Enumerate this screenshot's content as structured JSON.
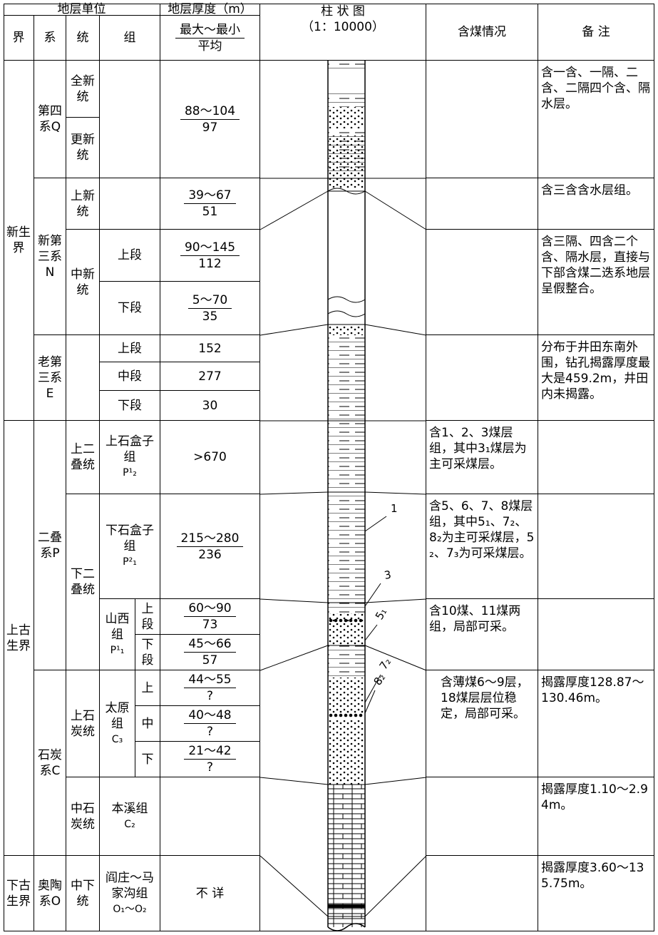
{
  "header": {
    "strata_unit": "地层单位",
    "thickness": "地层厚度（m）",
    "erathem": "界",
    "system": "系",
    "series": "统",
    "formation": "组",
    "range": "最大～最小",
    "average": "平均",
    "column": "柱 状 图",
    "scale": "（1：10000）",
    "coal": "含煤情况",
    "remarks": "备 注"
  },
  "erathems": [
    "新生界",
    "上古生界",
    "下古生界"
  ],
  "systems": [
    "第四系Q",
    "新第三系N",
    "老第三系E",
    "二叠系P",
    "石炭系C",
    "奥陶系O"
  ],
  "series": [
    "全新统",
    "更新统",
    "上新统",
    "中新统",
    "上二叠统",
    "下二叠统",
    "上石炭统",
    "中石炭统",
    "中下统"
  ],
  "formations": [
    {
      "name": "上段"
    },
    {
      "name": "下段"
    },
    {
      "name": "上段"
    },
    {
      "name": "中段"
    },
    {
      "name": "下段"
    },
    {
      "name": "上石盒子组",
      "code": "P¹₂"
    },
    {
      "name": "下石盒子组",
      "code": "P²₁"
    },
    {
      "name": "山西组",
      "code": "P¹₁"
    },
    {
      "name": "上段"
    },
    {
      "name": "下段"
    },
    {
      "name": "太原组",
      "code": "C₃"
    },
    {
      "name": "上"
    },
    {
      "name": "中"
    },
    {
      "name": "下"
    },
    {
      "name": "本溪组",
      "code": "C₂"
    },
    {
      "name": "阎庄～马家沟组",
      "code": "O₁～O₂"
    }
  ],
  "thickness": [
    {
      "range": "88～104",
      "average": "97"
    },
    {
      "range": "39～67",
      "average": "51"
    },
    {
      "range": "90～145",
      "average": "112"
    },
    {
      "range": "5～70",
      "average": "35"
    },
    {
      "value": "152"
    },
    {
      "value": "277"
    },
    {
      "value": "30"
    },
    {
      "value": ">670"
    },
    {
      "range": "215～280",
      "average": "236"
    },
    {
      "range": "60～90",
      "average": "73"
    },
    {
      "range": "45～66",
      "average": "57"
    },
    {
      "range": "44～55",
      "average": "?"
    },
    {
      "range": "40～48",
      "average": "?"
    },
    {
      "range": "21～42",
      "average": "?"
    },
    {
      "value": "不 详"
    }
  ],
  "coal": [
    "含1、2、3煤层组，其中3₁煤层为主可采煤层。",
    "含5、6、7、8煤层组，其中5₁、7₂、8₂为主可采煤层，5₂、7₃为可采煤层。",
    "含10煤、11煤两组，局部可采。",
    "含薄煤6～9层，18煤层层位稳定，局部可采。"
  ],
  "remarks": [
    "含一含、一隔、二含、二隔四个含、隔水层。",
    "含三含含水层组。",
    "含三隔、四含二个含、隔水层，直接与下部含煤二迭系地层呈假整合。",
    "分布于井田东南外围，钻孔揭露厚度最大是459.2m，井田内未揭露。",
    "揭露厚度128.87～130.46m。",
    "揭露厚度1.10～2.94m。",
    "揭露厚度3.60～135.75m。"
  ],
  "column_labels": [
    "1",
    "3",
    "5₁",
    "7₂",
    "8₂"
  ]
}
